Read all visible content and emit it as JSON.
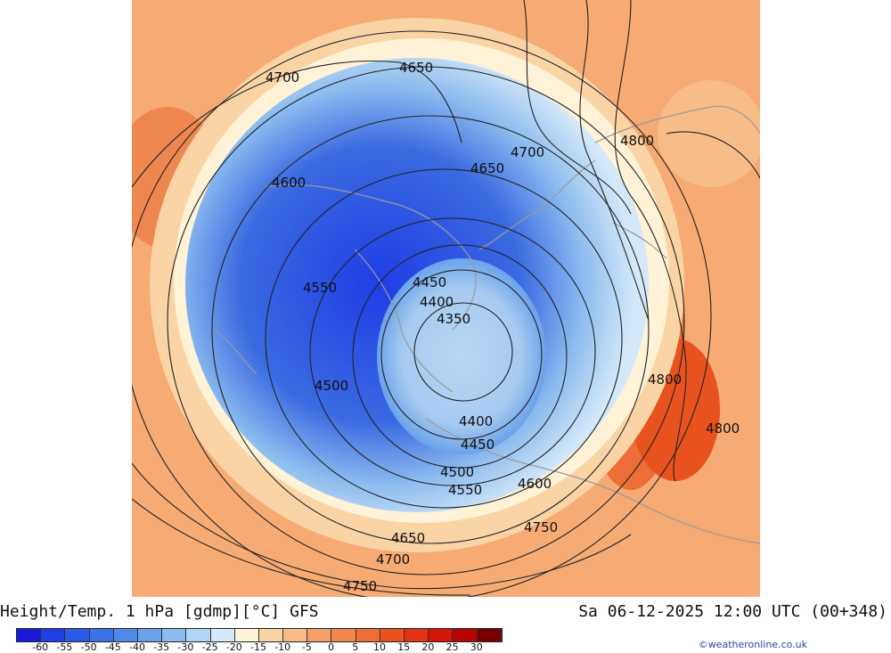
{
  "title": "Height/Temp. 1 hPa [gdmp][°C] GFS",
  "datetime": "Sa 06-12-2025 12:00 UTC (00+348)",
  "credit": "©weatheronline.co.uk",
  "colorbar": {
    "colors": [
      "#1a1ad8",
      "#1f3ee6",
      "#2a5ae8",
      "#3a72e8",
      "#4f8ae6",
      "#6aa2ea",
      "#8cbcef",
      "#b0d4f4",
      "#d3e8f8",
      "#fff2d6",
      "#fbd4a6",
      "#f8bc88",
      "#f4a06a",
      "#f0884e",
      "#ec6e36",
      "#e8521e",
      "#e23414",
      "#d21608",
      "#b40404",
      "#7a0000"
    ],
    "ticks": [
      "-60",
      "-55",
      "-50",
      "-45",
      "-40",
      "-35",
      "-30",
      "-25",
      "-20",
      "-15",
      "-10",
      "-5",
      "0",
      "5",
      "10",
      "15",
      "20",
      "25",
      "30"
    ]
  },
  "contour_labels": [
    "4700",
    "4650",
    "4800",
    "4700",
    "4650",
    "4600",
    "4550",
    "4450",
    "4400",
    "4350",
    "4500",
    "4800",
    "4800",
    "4400",
    "4450",
    "4500",
    "4550",
    "4600",
    "4750",
    "4650",
    "4700",
    "4750"
  ]
}
